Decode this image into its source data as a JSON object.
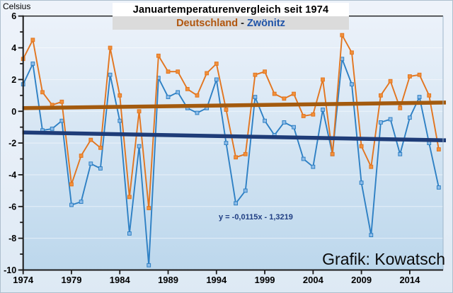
{
  "header": {
    "title": "Januartemperaturenvergleich seit 1974",
    "subtitle_left": "Deutschland",
    "subtitle_sep": "-",
    "subtitle_right": "Zwönitz"
  },
  "labels": {
    "credit": "Grafik: Kowatsch"
  },
  "colors": {
    "subtitle_left": "#b1560e",
    "subtitle_sep": "#222222",
    "subtitle_right": "#1f53a8",
    "equation": "#1f3d82",
    "axis": "#1a1a1a",
    "plot_top": "#ecf2fa",
    "plot_bottom": "#bcd7ec"
  },
  "chart_data": {
    "type": "line",
    "title": "Januartemperaturenvergleich seit 1974",
    "subtitle": "Deutschland - Zwönitz",
    "ylabel": "Celsius",
    "ylim": [
      -10,
      6
    ],
    "ytick_step": 2,
    "grid": "horizontal white lines at even values",
    "legend_position": "in subtitle (colored words)",
    "xticks": [
      1974,
      1979,
      1984,
      1989,
      1994,
      1999,
      2004,
      2009,
      2014
    ],
    "years": [
      1974,
      1975,
      1976,
      1977,
      1978,
      1979,
      1980,
      1981,
      1982,
      1983,
      1984,
      1985,
      1986,
      1987,
      1988,
      1989,
      1990,
      1991,
      1992,
      1993,
      1994,
      1995,
      1996,
      1997,
      1998,
      1999,
      2000,
      2001,
      2002,
      2003,
      2004,
      2005,
      2006,
      2007,
      2008,
      2009,
      2010,
      2011,
      2012,
      2013,
      2014,
      2015,
      2016,
      2017
    ],
    "series": [
      {
        "name": "Deutschland",
        "color": "#e2751f",
        "marker_fill": "#f1913c",
        "values": [
          3.3,
          4.5,
          1.2,
          0.4,
          0.6,
          -4.6,
          -2.8,
          -1.8,
          -2.3,
          4.0,
          1.0,
          -5.4,
          0.0,
          -6.1,
          3.5,
          2.5,
          2.5,
          1.4,
          1.0,
          2.4,
          3.0,
          0.1,
          -2.9,
          -2.7,
          2.3,
          2.5,
          1.1,
          0.8,
          1.1,
          -0.3,
          -0.2,
          2.0,
          -2.7,
          4.8,
          3.7,
          -2.2,
          -3.5,
          1.0,
          1.9,
          0.2,
          2.2,
          2.3,
          1.0,
          -2.4
        ]
      },
      {
        "name": "Zwönitz",
        "color": "#2e80c4",
        "marker_fill": "#8fbce8",
        "values": [
          1.7,
          3.0,
          -1.2,
          -1.1,
          -0.6,
          -5.9,
          -5.7,
          -3.3,
          -3.6,
          2.3,
          -0.6,
          -7.7,
          -2.2,
          -9.7,
          2.1,
          0.9,
          1.2,
          0.2,
          -0.1,
          0.2,
          2.0,
          -2.0,
          -5.8,
          -5.0,
          0.9,
          -0.6,
          -1.5,
          -0.7,
          -1.0,
          -3.0,
          -3.5,
          0.1,
          -2.7,
          3.3,
          1.7,
          -4.5,
          -7.8,
          -0.7,
          -0.5,
          -2.7,
          -0.4,
          0.9,
          -2.0,
          -4.8
        ]
      }
    ],
    "trendlines": [
      {
        "name": "Deutschland-Trend",
        "color": "#a35a0e",
        "start_value": 0.2,
        "end_value": 0.55
      },
      {
        "name": "Zwönitz-Trend",
        "color": "#1e3c78",
        "start_value": -1.33,
        "end_value": -1.83
      }
    ],
    "annotation": {
      "text": "y = -0,0115x - 1,3219",
      "refers_to": "Zwönitz-Trend"
    }
  }
}
